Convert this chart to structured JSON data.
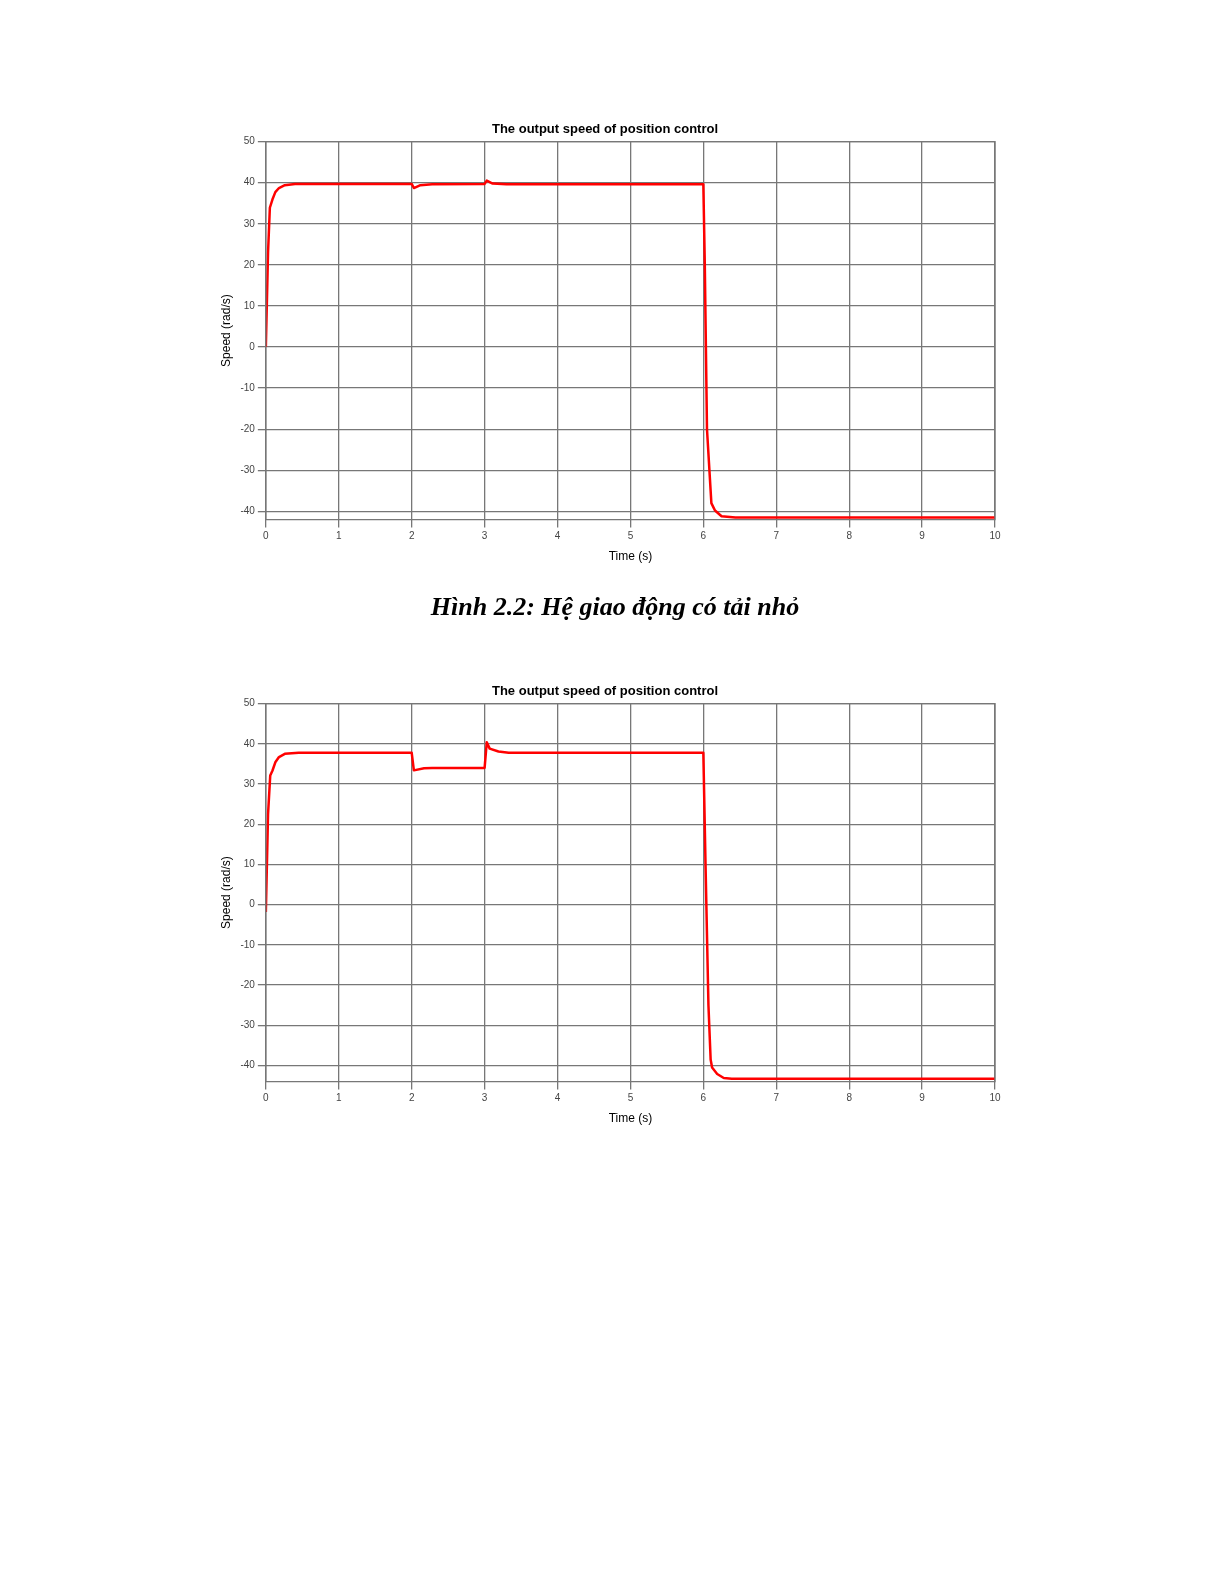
{
  "chart_data": [
    {
      "type": "line",
      "title": "The output speed of position control",
      "xlabel": "Time (s)",
      "ylabel": "Speed (rad/s)",
      "series": [
        {
          "color": "#ff0000",
          "x": [
            0,
            0.03,
            0.055,
            0.09,
            0.13,
            0.18,
            0.26,
            0.4,
            2.0,
            2.03,
            2.12,
            2.28,
            3.0,
            3.03,
            3.11,
            3.3,
            6.0,
            6.02,
            6.05,
            6.11,
            6.16,
            6.25,
            6.44,
            10
          ],
          "values": [
            0,
            23,
            33.9,
            35.9,
            37.7,
            38.7,
            39.4,
            39.7,
            39.7,
            38.7,
            39.4,
            39.6,
            39.7,
            40.5,
            39.8,
            39.6,
            39.6,
            20,
            -20,
            -38,
            -39.8,
            -41.2,
            -41.5,
            -41.5
          ]
        }
      ],
      "xlim": [
        0,
        10
      ],
      "xticks": [
        0,
        1,
        2,
        3,
        4,
        5,
        6,
        7,
        8,
        9,
        10
      ],
      "ylim": [
        -42,
        50
      ],
      "yticks": [
        -40,
        -30,
        -20,
        -10,
        0,
        10,
        20,
        30,
        40,
        50
      ],
      "grid": true,
      "legend": false,
      "marker": "none",
      "line_style": "solid",
      "annotations": [
        "Hình 2.2: Hệ giao động có tải nhỏ"
      ]
    },
    {
      "type": "line",
      "title": "The output speed of position control",
      "xlabel": "Time (s)",
      "ylabel": "Speed (rad/s)",
      "series": [
        {
          "color": "#ff0000",
          "x": [
            0,
            0.03,
            0.06,
            0.09,
            0.13,
            0.18,
            0.26,
            0.45,
            2.0,
            2.03,
            2.17,
            2.28,
            3.0,
            3.03,
            3.07,
            3.19,
            3.33,
            6.0,
            6.03,
            6.07,
            6.1,
            6.12,
            6.19,
            6.28,
            6.39,
            10
          ],
          "values": [
            -1.8,
            22.5,
            32.1,
            33.3,
            35.4,
            36.7,
            37.5,
            37.8,
            37.8,
            33.4,
            33.9,
            34.0,
            34.0,
            40.4,
            38.8,
            38.1,
            37.8,
            37.8,
            10,
            -25,
            -38.5,
            -40.5,
            -42.1,
            -43.1,
            -43.3,
            -43.3
          ]
        }
      ],
      "xlim": [
        0,
        10
      ],
      "xticks": [
        0,
        1,
        2,
        3,
        4,
        5,
        6,
        7,
        8,
        9,
        10
      ],
      "ylim": [
        -44,
        50
      ],
      "yticks": [
        -40,
        -30,
        -20,
        -10,
        0,
        10,
        20,
        30,
        40,
        50
      ],
      "grid": true,
      "legend": false,
      "marker": "none",
      "line_style": "solid"
    }
  ]
}
